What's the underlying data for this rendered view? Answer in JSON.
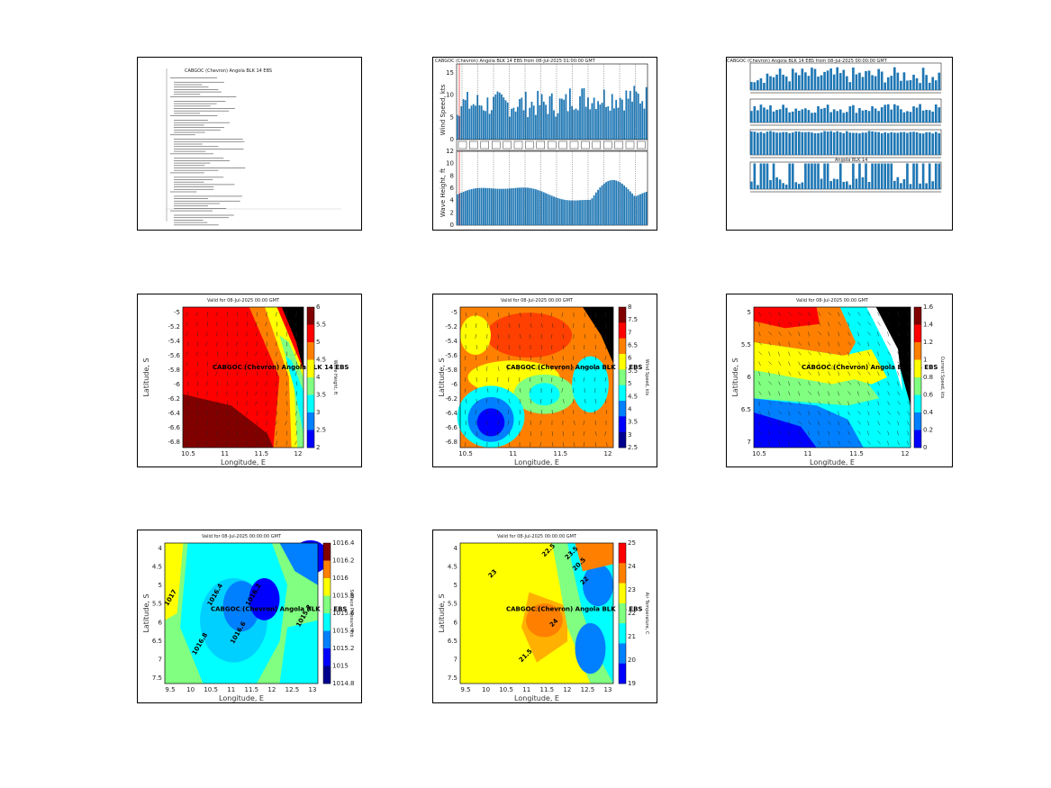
{
  "panels": {
    "forecast_text": {
      "header": "CABGOC (Chevron) Angola BLK 14 EBS"
    },
    "timeseries": {
      "title": "CABGOC (Chevron) Angola BLK 14 EBS from 08-Jul-2025 01:00:00 GMT",
      "wind_ylabel": "Wind Speed, kts",
      "wave_ylabel": "Wave Height, ft",
      "wind_yticks": [
        "0",
        "5",
        "10",
        "15"
      ],
      "wave_yticks": [
        "0",
        "2",
        "4",
        "6",
        "8",
        "10",
        "12"
      ]
    },
    "multi_timeseries": {
      "title": "CABGOC (Chevron) Angola BLK 14 EBS from 08-Jul-2025 00:00:00 GMT",
      "sub_title": "Angola BLK 14"
    },
    "map_wave": {
      "title": "Valid for 08-Jul-2025 00:00 GMT",
      "location": "CABGOC (Chevron) Angola BLK 14 EBS",
      "xlabel": "Longitude, E",
      "ylabel": "Latitude, S",
      "xticks": [
        "10.5",
        "11",
        "11.5",
        "12"
      ],
      "yticks": [
        "5",
        "5.2",
        "5.4",
        "5.6",
        "5.8",
        "6",
        "6.2",
        "6.4",
        "6.6",
        "6.8"
      ],
      "cbar_ticks": [
        "6",
        "5.5",
        "5",
        "4.5",
        "4",
        "3.5",
        "3",
        "2.5",
        "2"
      ],
      "cbar_label": "Wave Height, ft"
    },
    "map_wind": {
      "title": "Valid for 08-Jul-2025 00:00 GMT",
      "location": "CABGOC (Chevron) Angola BLK 14 EBS",
      "xlabel": "Longitude, E",
      "ylabel": "Latitude, S",
      "xticks": [
        "10.5",
        "11",
        "11.5",
        "12"
      ],
      "yticks": [
        "5",
        "5.2",
        "5.4",
        "5.6",
        "5.8",
        "6",
        "6.2",
        "6.4",
        "6.6",
        "6.8"
      ],
      "cbar_ticks": [
        "8",
        "7.5",
        "7",
        "6.5",
        "6",
        "5.5",
        "5",
        "4.5",
        "4",
        "3.5",
        "3",
        "2.5"
      ],
      "cbar_label": "Wind Speed, kts"
    },
    "map_current": {
      "title": "Valid for 08-Jul-2025 00:00 GMT",
      "location": "CABGOC (Chevron) Angola BLK 14 EBS",
      "xlabel": "Longitude, E",
      "ylabel": "Latitude, S",
      "xticks": [
        "10.5",
        "11",
        "11.5",
        "12"
      ],
      "yticks": [
        "5",
        "5.5",
        "6",
        "6.5",
        "7"
      ],
      "cbar_ticks": [
        "1.6",
        "1.4",
        "1.2",
        "1",
        "0.8",
        "0.6",
        "0.4",
        "0.2",
        "0"
      ],
      "cbar_label": "Current Speed, kts"
    },
    "map_pressure": {
      "title": "Valid for 08-Jul-2025 00:00:00 GMT",
      "location": "CABGOC (Chevron) Angola BLK 14 EBS",
      "xlabel": "Longitude, E",
      "ylabel": "Latitude, S",
      "xticks": [
        "9.5",
        "10",
        "10.5",
        "11",
        "11.5",
        "12",
        "12.5",
        "13"
      ],
      "yticks": [
        "4",
        "4.5",
        "5",
        "5.5",
        "6",
        "6.5",
        "7",
        "7.5"
      ],
      "cbar_ticks": [
        "1016.4",
        "1016.2",
        "1016",
        "1015.8",
        "1015.6",
        "1015.4",
        "1015.2",
        "1015",
        "1014.8"
      ],
      "cbar_label": "Surface Pressure, mb",
      "contour_labels": [
        "1016.4",
        "1016.6",
        "1016.8",
        "1017",
        "1016.2",
        "1015.2"
      ]
    },
    "map_temp": {
      "title": "Valid for 08-Jul-2025 00:00:00 GMT",
      "location": "CABGOC (Chevron) Angola BLK 14 EBS",
      "xlabel": "Longitude, E",
      "ylabel": "Latitude, S",
      "xticks": [
        "9.5",
        "10",
        "10.5",
        "11",
        "11.5",
        "12",
        "12.5",
        "13"
      ],
      "yticks": [
        "4",
        "4.5",
        "5",
        "5.5",
        "6",
        "6.5",
        "7",
        "7.5"
      ],
      "cbar_ticks": [
        "25",
        "24",
        "23",
        "22",
        "21",
        "20",
        "19"
      ],
      "cbar_label": "Air Temperature, C",
      "contour_labels": [
        "23",
        "22.5",
        "23.5",
        "24",
        "22",
        "21.5",
        "20.5"
      ]
    }
  },
  "colors": {
    "bar": "#1f77b4",
    "bar_dark": "#0b2e6b",
    "jet": [
      "#00008f",
      "#0000ff",
      "#0080ff",
      "#00ffff",
      "#80ff80",
      "#ffff00",
      "#ff8000",
      "#ff0000",
      "#800000"
    ]
  }
}
